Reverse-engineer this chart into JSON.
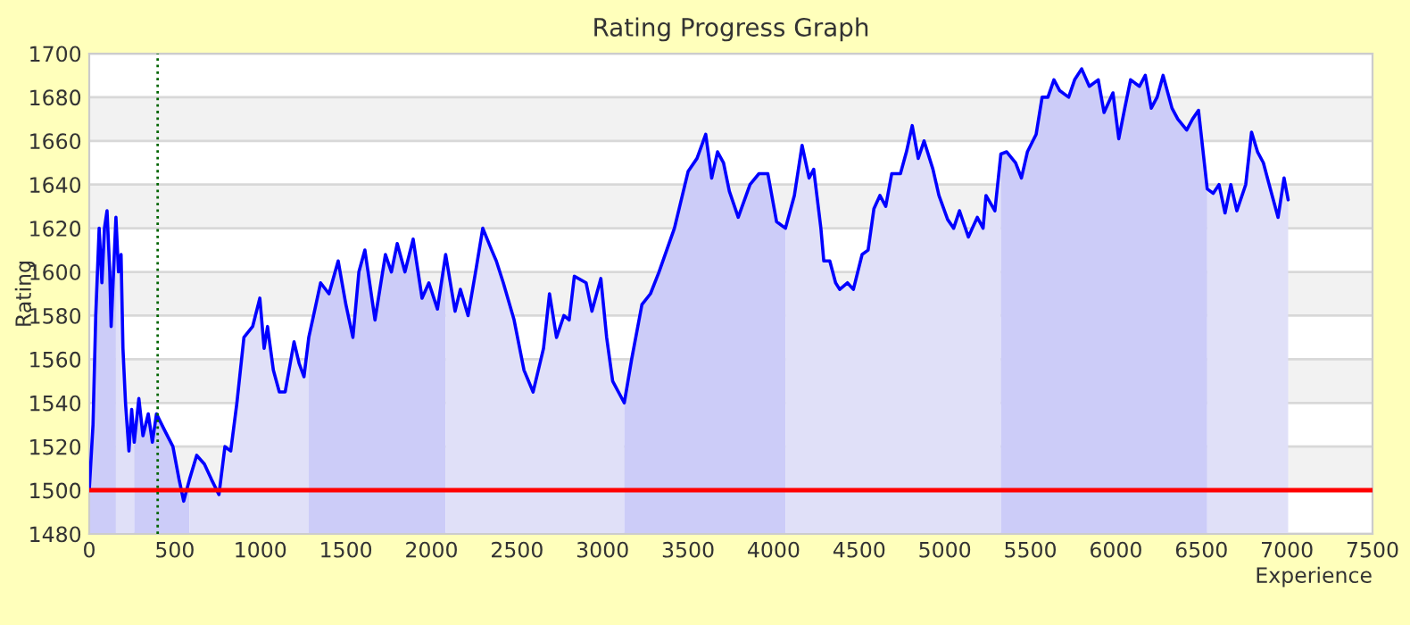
{
  "chart_data": {
    "type": "line",
    "title": "Rating Progress Graph",
    "xlabel": "Experience",
    "ylabel": "Rating",
    "xlim": [
      0,
      7500
    ],
    "xticks": [
      0,
      500,
      1000,
      1500,
      2000,
      2500,
      3000,
      3500,
      4000,
      4500,
      5000,
      5500,
      6000,
      6500,
      7000,
      7500
    ],
    "ylim": [
      1480,
      1700
    ],
    "yticks": [
      1480,
      1500,
      1520,
      1540,
      1560,
      1580,
      1600,
      1620,
      1640,
      1660,
      1680,
      1700
    ],
    "grid": "y",
    "legend": false,
    "marker": "none",
    "line_style": "solid",
    "series": [
      {
        "color": "#0000ff",
        "x": [
          0,
          22,
          38,
          58,
          74,
          89,
          104,
          120,
          128,
          156,
          171,
          186,
          197,
          212,
          232,
          248,
          263,
          290,
          314,
          345,
          369,
          393,
          437,
          489,
          525,
          552,
          586,
          628,
          673,
          714,
          758,
          793,
          827,
          863,
          904,
          955,
          997,
          1022,
          1042,
          1076,
          1111,
          1145,
          1197,
          1227,
          1255,
          1283,
          1311,
          1352,
          1401,
          1455,
          1500,
          1541,
          1576,
          1611,
          1670,
          1731,
          1766,
          1800,
          1845,
          1893,
          1945,
          1985,
          2035,
          2083,
          2138,
          2169,
          2214,
          2258,
          2300,
          2352,
          2379,
          2420,
          2483,
          2541,
          2594,
          2655,
          2690,
          2731,
          2774,
          2805,
          2835,
          2904,
          2938,
          2990,
          3024,
          3059,
          3127,
          3170,
          3230,
          3280,
          3330,
          3420,
          3500,
          3552,
          3603,
          3638,
          3672,
          3707,
          3741,
          3793,
          3862,
          3914,
          3966,
          4017,
          4069,
          4121,
          4166,
          4207,
          4234,
          4276,
          4293,
          4328,
          4362,
          4386,
          4431,
          4466,
          4517,
          4552,
          4586,
          4621,
          4655,
          4690,
          4741,
          4776,
          4810,
          4845,
          4879,
          4931,
          4966,
          5017,
          5052,
          5086,
          5138,
          5190,
          5224,
          5241,
          5293,
          5328,
          5362,
          5414,
          5448,
          5483,
          5534,
          5569,
          5603,
          5638,
          5672,
          5724,
          5759,
          5800,
          5845,
          5897,
          5931,
          5983,
          6017,
          6052,
          6086,
          6138,
          6172,
          6207,
          6241,
          6276,
          6328,
          6362,
          6414,
          6448,
          6483,
          6534,
          6569,
          6603,
          6638,
          6672,
          6707,
          6759,
          6793,
          6828,
          6862,
          6896,
          6948,
          6983,
          7007
        ],
        "values": [
          1500,
          1530,
          1580,
          1620,
          1595,
          1620,
          1628,
          1600,
          1575,
          1625,
          1600,
          1608,
          1565,
          1540,
          1518,
          1537,
          1522,
          1542,
          1525,
          1535,
          1522,
          1535,
          1528,
          1520,
          1505,
          1495,
          1505,
          1516,
          1512,
          1505,
          1498,
          1520,
          1518,
          1540,
          1570,
          1575,
          1588,
          1565,
          1575,
          1555,
          1545,
          1545,
          1568,
          1558,
          1552,
          1570,
          1580,
          1595,
          1590,
          1605,
          1585,
          1570,
          1600,
          1610,
          1578,
          1608,
          1600,
          1613,
          1600,
          1615,
          1588,
          1595,
          1583,
          1608,
          1582,
          1592,
          1580,
          1600,
          1620,
          1610,
          1605,
          1595,
          1578,
          1555,
          1545,
          1565,
          1590,
          1570,
          1580,
          1578,
          1598,
          1595,
          1582,
          1597,
          1570,
          1550,
          1540,
          1560,
          1585,
          1590,
          1600,
          1620,
          1646,
          1652,
          1663,
          1643,
          1655,
          1650,
          1637,
          1625,
          1640,
          1645,
          1645,
          1623,
          1620,
          1635,
          1658,
          1643,
          1647,
          1620,
          1605,
          1605,
          1595,
          1592,
          1595,
          1592,
          1608,
          1610,
          1629,
          1635,
          1630,
          1645,
          1645,
          1655,
          1667,
          1652,
          1660,
          1647,
          1635,
          1624,
          1620,
          1628,
          1616,
          1625,
          1620,
          1635,
          1628,
          1654,
          1655,
          1650,
          1643,
          1655,
          1663,
          1680,
          1680,
          1688,
          1683,
          1680,
          1688,
          1693,
          1685,
          1688,
          1673,
          1682,
          1661,
          1675,
          1688,
          1685,
          1690,
          1675,
          1680,
          1690,
          1675,
          1670,
          1665,
          1670,
          1674,
          1638,
          1636,
          1640,
          1627,
          1640,
          1628,
          1640,
          1664,
          1655,
          1650,
          1640,
          1625,
          1643,
          1633
        ]
      },
      {
        "type": "area",
        "color": "#ccccf8",
        "x": [
          0,
          22,
          38,
          58,
          74,
          89,
          104,
          120,
          128,
          156
        ],
        "values": [
          1500,
          1530,
          1580,
          1620,
          1595,
          1620,
          1628,
          1600,
          1575,
          1625
        ]
      },
      {
        "type": "area",
        "color": "#e0e0f8",
        "x": [
          156,
          171,
          186,
          197,
          212,
          232,
          248,
          263
        ],
        "values": [
          1625,
          1600,
          1608,
          1565,
          1540,
          1518,
          1537,
          1522
        ]
      },
      {
        "type": "area",
        "color": "#ccccf8",
        "x": [
          263,
          290,
          314,
          345,
          369,
          393,
          437,
          489,
          525,
          552,
          586
        ],
        "values": [
          1522,
          1542,
          1525,
          1535,
          1522,
          1535,
          1528,
          1520,
          1505,
          1495,
          1505
        ]
      },
      {
        "type": "area",
        "color": "#e0e0f8",
        "x": [
          586,
          628,
          673,
          714,
          758,
          793,
          827,
          863,
          904,
          955,
          997,
          1022,
          1042,
          1076,
          1111,
          1145,
          1197,
          1227,
          1255,
          1283
        ],
        "values": [
          1505,
          1516,
          1512,
          1505,
          1498,
          1520,
          1518,
          1540,
          1570,
          1575,
          1588,
          1565,
          1575,
          1555,
          1545,
          1545,
          1568,
          1558,
          1552,
          1570
        ]
      },
      {
        "type": "area",
        "color": "#ccccf8",
        "x": [
          1283,
          1311,
          1352,
          1401,
          1455,
          1500,
          1541,
          1576,
          1611,
          1670,
          1731,
          1766,
          1800,
          1845,
          1893,
          1945,
          1985,
          2035,
          2083
        ],
        "values": [
          1570,
          1580,
          1595,
          1590,
          1605,
          1585,
          1570,
          1600,
          1610,
          1578,
          1608,
          1600,
          1613,
          1600,
          1615,
          1588,
          1595,
          1583,
          1608
        ]
      },
      {
        "type": "area",
        "color": "#e0e0f8",
        "x": [
          2083,
          2138,
          2169,
          2214,
          2258,
          2300,
          2352,
          2379,
          2420,
          2483,
          2541,
          2594,
          2655,
          2690,
          2731,
          2774,
          2805,
          2835,
          2904,
          2938,
          2990,
          3024,
          3059,
          3127
        ],
        "values": [
          1608,
          1582,
          1592,
          1580,
          1600,
          1620,
          1610,
          1605,
          1595,
          1578,
          1555,
          1545,
          1565,
          1590,
          1570,
          1580,
          1578,
          1598,
          1595,
          1582,
          1597,
          1570,
          1550,
          1540
        ]
      },
      {
        "type": "area",
        "color": "#ccccf8",
        "x": [
          3127,
          3170,
          3230,
          3280,
          3330,
          3420,
          3500,
          3552,
          3603,
          3638,
          3672,
          3707,
          3741,
          3793,
          3862,
          3914,
          3966,
          4017,
          4069
        ],
        "values": [
          1540,
          1560,
          1585,
          1590,
          1600,
          1620,
          1646,
          1652,
          1663,
          1643,
          1655,
          1650,
          1637,
          1625,
          1640,
          1645,
          1645,
          1623,
          1620
        ]
      },
      {
        "type": "area",
        "color": "#e0e0f8",
        "x": [
          4069,
          4121,
          4166,
          4207,
          4234,
          4276,
          4293,
          4328,
          4362,
          4386,
          4431,
          4466,
          4517,
          4552,
          4586,
          4621,
          4655,
          4690,
          4741,
          4776,
          4810,
          4845,
          4879,
          4931,
          4966,
          5017,
          5052,
          5086,
          5138,
          5190,
          5224,
          5241,
          5293,
          5328
        ],
        "values": [
          1620,
          1635,
          1658,
          1643,
          1647,
          1620,
          1605,
          1605,
          1595,
          1592,
          1595,
          1592,
          1608,
          1610,
          1629,
          1635,
          1630,
          1645,
          1645,
          1655,
          1667,
          1652,
          1660,
          1647,
          1635,
          1624,
          1620,
          1628,
          1616,
          1625,
          1620,
          1635,
          1628,
          1654
        ]
      },
      {
        "type": "area",
        "color": "#ccccf8",
        "x": [
          5328,
          5362,
          5414,
          5448,
          5483,
          5534,
          5569,
          5603,
          5638,
          5672,
          5724,
          5759,
          5800,
          5845,
          5897,
          5931,
          5983,
          6017,
          6052,
          6086,
          6138,
          6172,
          6207,
          6241,
          6276,
          6328,
          6362,
          6414,
          6448,
          6483,
          6534
        ],
        "values": [
          1654,
          1655,
          1650,
          1643,
          1655,
          1663,
          1680,
          1680,
          1688,
          1683,
          1680,
          1688,
          1693,
          1685,
          1688,
          1673,
          1682,
          1661,
          1675,
          1688,
          1685,
          1690,
          1675,
          1680,
          1690,
          1675,
          1670,
          1665,
          1670,
          1674,
          1638
        ]
      },
      {
        "type": "area",
        "color": "#e0e0f8",
        "x": [
          6534,
          6569,
          6603,
          6638,
          6672,
          6707,
          6759,
          6793,
          6828,
          6862,
          6896,
          6948,
          6983,
          7007
        ],
        "values": [
          1638,
          1636,
          1640,
          1627,
          1640,
          1628,
          1640,
          1664,
          1655,
          1650,
          1640,
          1625,
          1643,
          1633
        ]
      }
    ],
    "bands": [
      {
        "axis": "y",
        "from": 1500,
        "to": 1520,
        "color": "#f2f2f2"
      },
      {
        "axis": "y",
        "from": 1540,
        "to": 1560,
        "color": "#f2f2f2"
      },
      {
        "axis": "y",
        "from": 1580,
        "to": 1600,
        "color": "#f2f2f2"
      },
      {
        "axis": "y",
        "from": 1620,
        "to": 1640,
        "color": "#f2f2f2"
      },
      {
        "axis": "y",
        "from": 1660,
        "to": 1680,
        "color": "#f2f2f2"
      }
    ],
    "ref_lines": [
      {
        "axis": "y",
        "value": 1500,
        "color": "#ff0000",
        "line_style": "solid"
      },
      {
        "axis": "x",
        "value": 400,
        "color": "#006400",
        "line_style": "dotted"
      }
    ]
  }
}
